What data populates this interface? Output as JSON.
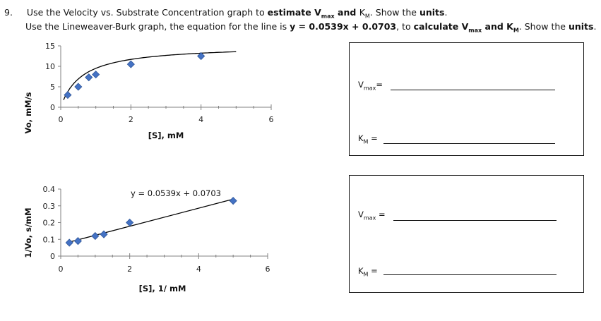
{
  "question": {
    "number": "9.",
    "line1": {
      "pre": "Use the Velocity vs. Substrate Concentration graph to ",
      "bold1": "estimate V",
      "bold1_sub": "max",
      "bold_and": " and ",
      "km_k": "K",
      "km_sub": "M",
      "tail": ". Show the ",
      "units": "units",
      "end": "."
    },
    "line2": {
      "pre": "Use the Lineweaver-Burk graph, the equation for the line is ",
      "equation": "y = 0.0539x + 0.0703",
      "mid": ", to ",
      "calc": "calculate V",
      "calc_sub": "max",
      "and_k": " and K",
      "k_sub": "M",
      "tail": ". Show the ",
      "units": "units",
      "end": "."
    }
  },
  "chart_data": [
    {
      "type": "scatter",
      "title": "",
      "xlabel": "[S], mM",
      "ylabel": "Vo, mM/s",
      "xlim": [
        0,
        6
      ],
      "ylim": [
        0,
        15
      ],
      "x_ticks": [
        "0",
        "2",
        "4",
        "6"
      ],
      "y_ticks": [
        "0",
        "5",
        "10",
        "15"
      ],
      "points": [
        {
          "x": 0.2,
          "y": 3.0
        },
        {
          "x": 0.5,
          "y": 5.0
        },
        {
          "x": 0.8,
          "y": 7.3
        },
        {
          "x": 1.0,
          "y": 8.0
        },
        {
          "x": 2.0,
          "y": 10.5
        },
        {
          "x": 4.0,
          "y": 12.5
        }
      ],
      "trendline": "curve (Michaelis-Menten fit)",
      "grid": false
    },
    {
      "type": "scatter",
      "title": "",
      "xlabel": "[S], 1/ mM",
      "ylabel": "1/Vo, s/mM",
      "xlim": [
        0,
        6
      ],
      "ylim": [
        0,
        0.4
      ],
      "x_ticks": [
        "0",
        "2",
        "4",
        "6"
      ],
      "y_ticks": [
        "0",
        "0.1",
        "0.2",
        "0.3",
        "0.4"
      ],
      "points": [
        {
          "x": 0.25,
          "y": 0.08
        },
        {
          "x": 0.5,
          "y": 0.09
        },
        {
          "x": 1.0,
          "y": 0.12
        },
        {
          "x": 1.25,
          "y": 0.13
        },
        {
          "x": 2.0,
          "y": 0.2
        },
        {
          "x": 5.0,
          "y": 0.33
        }
      ],
      "trendline": "linear",
      "annotation": "y = 0.0539x + 0.0703",
      "line": {
        "slope": 0.0539,
        "intercept": 0.0703
      },
      "grid": false
    }
  ],
  "answers": {
    "box1": {
      "vmax_v": "V",
      "vmax_sub": "max",
      "vmax_eq": "=",
      "km_k": "K",
      "km_sub": "M",
      "km_eq": " ="
    },
    "box2": {
      "vmax_v": "V",
      "vmax_sub": "max",
      "vmax_eq": " =",
      "km_k": "K",
      "km_sub": "M",
      "km_eq": " ="
    }
  },
  "colors": {
    "marker": "#4472C4",
    "marker_stroke": "#2E5597",
    "line": "#000000",
    "axis": "#808080"
  }
}
